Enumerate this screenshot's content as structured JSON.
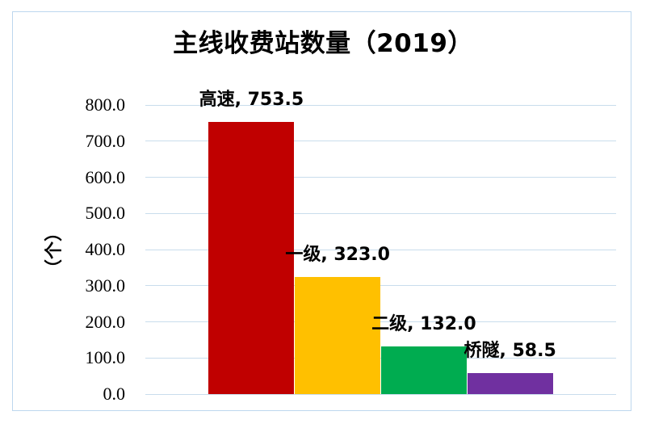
{
  "chart_data": {
    "type": "bar",
    "title": "主线收费站数量（2019）",
    "xlabel": "",
    "ylabel": "（个）",
    "categories": [
      "高速",
      "一级",
      "二级",
      "桥隧"
    ],
    "values": [
      753.5,
      323.0,
      132.0,
      58.5
    ],
    "data_labels": [
      "高速, 753.5",
      "一级, 323.0",
      "二级, 132.0",
      "桥隧, 58.5"
    ],
    "bar_colors": [
      "#C00000",
      "#FFC000",
      "#00AC50",
      "#7030A0"
    ],
    "ylim": [
      0,
      800
    ],
    "ytick_interval": 100,
    "ytick_labels": [
      "0.0",
      "100.0",
      "200.0",
      "300.0",
      "400.0",
      "500.0",
      "600.0",
      "700.0",
      "800.0"
    ],
    "grid": true,
    "legend_position": "none",
    "gridline_color": "#C9DDEC",
    "frame_border_color": "#BDD7EE",
    "background_color": "#FFFFFF"
  }
}
